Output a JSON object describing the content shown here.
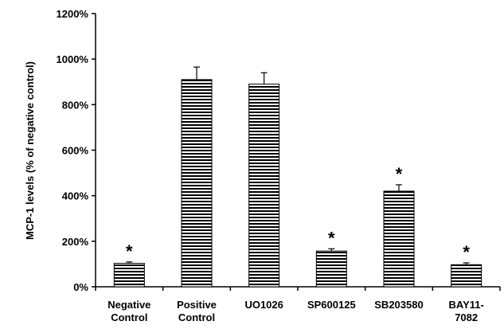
{
  "chart_data": {
    "type": "bar",
    "title": "",
    "xlabel": "",
    "ylabel": "MCP-1 levels (% of negative control)",
    "ylim": [
      0,
      1200
    ],
    "yticks": [
      "0%",
      "200%",
      "400%",
      "600%",
      "800%",
      "1000%",
      "1200%"
    ],
    "ytick_values": [
      0,
      200,
      400,
      600,
      800,
      1000,
      1200
    ],
    "categories": [
      [
        "Negative",
        "Control"
      ],
      [
        "Positive",
        "Control"
      ],
      [
        "UO1026"
      ],
      [
        "SP600125"
      ],
      [
        "SB203580"
      ],
      [
        "BAY11-",
        "7082"
      ]
    ],
    "values": [
      103,
      910,
      890,
      157,
      420,
      97
    ],
    "errors": [
      6,
      55,
      50,
      10,
      28,
      8
    ],
    "significance": [
      "*",
      "",
      "",
      "*",
      "*",
      "*"
    ],
    "bar_style": "horizontal-hatch",
    "grid": false,
    "legend": "none",
    "colors": {
      "bar_fill": "#ffffff",
      "hatch": "#000000",
      "axis": "#000000"
    }
  }
}
